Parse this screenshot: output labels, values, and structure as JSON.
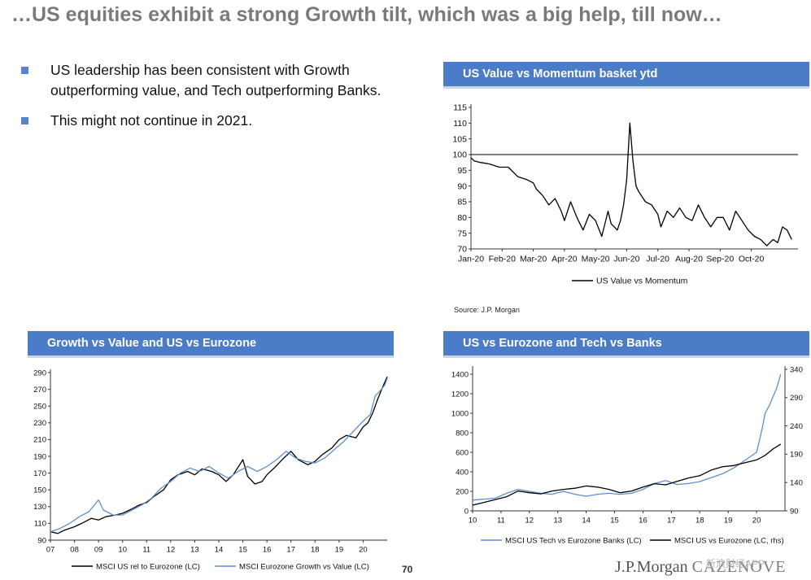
{
  "title": "…US equities exhibit a strong Growth tilt, which was a big help, till now…",
  "bullets": [
    "US leadership has been consistent with Growth outperforming value, and Tech outperforming Banks.",
    "This might not continue in 2021."
  ],
  "panel1": {
    "header": "US Value vs Momentum basket ytd",
    "source": "Source: J.P. Morgan"
  },
  "panel2": {
    "header": "Growth vs Value and US vs Eurozone"
  },
  "panel3": {
    "header": "US vs Eurozone and Tech vs Banks"
  },
  "footer": {
    "page": "70",
    "logo_a": "J.P.Morgan",
    "logo_b": "CAZENOVE",
    "watermark": "新浪财经APP"
  },
  "colors": {
    "header_bg": "#4a7cc7",
    "bullet": "#5b84c8",
    "series_black": "#000000",
    "series_blue": "#5b8fd0"
  },
  "chart_data": [
    {
      "type": "line",
      "title": "US Value vs Momentum basket ytd",
      "categories": [
        "Jan-20",
        "Feb-20",
        "Mar-20",
        "Apr-20",
        "May-20",
        "Jun-20",
        "Jul-20",
        "Aug-20",
        "Sep-20",
        "Oct-20"
      ],
      "yticks": [
        70,
        75,
        80,
        85,
        90,
        95,
        100,
        105,
        110,
        115
      ],
      "ylim": [
        70,
        115
      ],
      "reference_line": 100,
      "legend": [
        "US Value vs Momentum"
      ],
      "series": [
        {
          "name": "US Value vs Momentum",
          "color": "#000000",
          "points": [
            [
              0,
              99
            ],
            [
              0.1,
              98
            ],
            [
              0.3,
              97.5
            ],
            [
              0.6,
              97
            ],
            [
              0.9,
              96
            ],
            [
              1.2,
              96
            ],
            [
              1.5,
              93
            ],
            [
              1.8,
              92
            ],
            [
              2.0,
              91
            ],
            [
              2.1,
              89
            ],
            [
              2.3,
              87
            ],
            [
              2.5,
              84
            ],
            [
              2.7,
              86
            ],
            [
              2.9,
              82
            ],
            [
              3.0,
              79
            ],
            [
              3.2,
              85
            ],
            [
              3.4,
              80
            ],
            [
              3.6,
              76
            ],
            [
              3.8,
              81
            ],
            [
              4.0,
              79
            ],
            [
              4.2,
              74
            ],
            [
              4.4,
              82
            ],
            [
              4.5,
              78
            ],
            [
              4.7,
              76
            ],
            [
              4.8,
              79
            ],
            [
              4.9,
              84
            ],
            [
              5.0,
              92
            ],
            [
              5.1,
              110
            ],
            [
              5.2,
              98
            ],
            [
              5.3,
              90
            ],
            [
              5.4,
              88
            ],
            [
              5.6,
              85
            ],
            [
              5.8,
              84
            ],
            [
              6.0,
              81
            ],
            [
              6.1,
              77
            ],
            [
              6.3,
              82
            ],
            [
              6.5,
              80
            ],
            [
              6.7,
              83
            ],
            [
              6.9,
              80
            ],
            [
              7.1,
              79
            ],
            [
              7.3,
              84
            ],
            [
              7.5,
              80
            ],
            [
              7.7,
              77
            ],
            [
              7.9,
              80
            ],
            [
              8.1,
              80
            ],
            [
              8.3,
              76
            ],
            [
              8.5,
              82
            ],
            [
              8.7,
              79
            ],
            [
              8.9,
              76
            ],
            [
              9.1,
              74
            ],
            [
              9.3,
              73
            ],
            [
              9.5,
              71
            ],
            [
              9.7,
              73
            ],
            [
              9.85,
              72
            ],
            [
              10.0,
              77
            ],
            [
              10.15,
              76
            ],
            [
              10.3,
              73
            ]
          ]
        }
      ]
    },
    {
      "type": "line",
      "title": "Growth vs Value and US vs Eurozone",
      "categories": [
        "07",
        "08",
        "09",
        "10",
        "11",
        "12",
        "13",
        "14",
        "15",
        "16",
        "17",
        "18",
        "19",
        "20"
      ],
      "yticks": [
        90,
        110,
        130,
        150,
        170,
        190,
        210,
        230,
        250,
        270,
        290
      ],
      "ylim": [
        90,
        290
      ],
      "legend": [
        "MSCI US rel to Eurozone (LC)",
        "MSCI Eurozone Growth vs Value (LC)"
      ],
      "series": [
        {
          "name": "MSCI US rel to Eurozone (LC)",
          "color": "#000000",
          "points": [
            [
              0,
              100
            ],
            [
              0.3,
              98
            ],
            [
              0.6,
              102
            ],
            [
              1.0,
              106
            ],
            [
              1.3,
              110
            ],
            [
              1.7,
              116
            ],
            [
              2.0,
              114
            ],
            [
              2.3,
              118
            ],
            [
              2.7,
              120
            ],
            [
              3.0,
              122
            ],
            [
              3.3,
              126
            ],
            [
              3.7,
              132
            ],
            [
              4.0,
              135
            ],
            [
              4.3,
              142
            ],
            [
              4.7,
              150
            ],
            [
              5.0,
              162
            ],
            [
              5.3,
              168
            ],
            [
              5.7,
              172
            ],
            [
              6.0,
              168
            ],
            [
              6.3,
              175
            ],
            [
              6.7,
              172
            ],
            [
              7.0,
              168
            ],
            [
              7.3,
              160
            ],
            [
              7.6,
              168
            ],
            [
              8.0,
              186
            ],
            [
              8.2,
              166
            ],
            [
              8.5,
              157
            ],
            [
              8.8,
              160
            ],
            [
              9.0,
              168
            ],
            [
              9.3,
              176
            ],
            [
              9.7,
              188
            ],
            [
              10.0,
              196
            ],
            [
              10.3,
              186
            ],
            [
              10.7,
              180
            ],
            [
              11.0,
              184
            ],
            [
              11.3,
              192
            ],
            [
              11.7,
              200
            ],
            [
              12.0,
              210
            ],
            [
              12.3,
              215
            ],
            [
              12.7,
              212
            ],
            [
              13.0,
              225
            ],
            [
              13.2,
              230
            ],
            [
              13.4,
              242
            ],
            [
              13.6,
              258
            ],
            [
              13.8,
              272
            ],
            [
              14.0,
              285
            ]
          ]
        },
        {
          "name": "MSCI Eurozone Growth vs Value (LC)",
          "color": "#5b8fd0",
          "points": [
            [
              0,
              100
            ],
            [
              0.4,
              104
            ],
            [
              0.8,
              110
            ],
            [
              1.2,
              118
            ],
            [
              1.6,
              124
            ],
            [
              2.0,
              138
            ],
            [
              2.2,
              126
            ],
            [
              2.6,
              120
            ],
            [
              3.0,
              120
            ],
            [
              3.4,
              126
            ],
            [
              3.8,
              132
            ],
            [
              4.2,
              140
            ],
            [
              4.6,
              152
            ],
            [
              5.0,
              160
            ],
            [
              5.4,
              170
            ],
            [
              5.8,
              176
            ],
            [
              6.2,
              172
            ],
            [
              6.6,
              178
            ],
            [
              7.0,
              170
            ],
            [
              7.4,
              164
            ],
            [
              7.8,
              172
            ],
            [
              8.2,
              178
            ],
            [
              8.6,
              172
            ],
            [
              9.0,
              178
            ],
            [
              9.4,
              186
            ],
            [
              9.8,
              196
            ],
            [
              10.2,
              188
            ],
            [
              10.6,
              184
            ],
            [
              11.0,
              182
            ],
            [
              11.4,
              188
            ],
            [
              11.8,
              198
            ],
            [
              12.2,
              208
            ],
            [
              12.6,
              220
            ],
            [
              13.0,
              232
            ],
            [
              13.3,
              240
            ],
            [
              13.5,
              262
            ],
            [
              13.7,
              268
            ],
            [
              13.9,
              275
            ],
            [
              14.0,
              283
            ]
          ]
        }
      ]
    },
    {
      "type": "line",
      "title": "US vs Eurozone and Tech vs Banks",
      "categories": [
        "10",
        "11",
        "12",
        "13",
        "14",
        "15",
        "16",
        "17",
        "18",
        "19",
        "20"
      ],
      "yticks": [
        0,
        200,
        400,
        600,
        800,
        1000,
        1200,
        1400
      ],
      "ylim": [
        0,
        1450
      ],
      "yticks_right": [
        90,
        140,
        190,
        240,
        290,
        340
      ],
      "ylim_right": [
        90,
        340
      ],
      "legend": [
        "MSCI US Tech vs Eurozone Banks (LC)",
        "MSCI US vs Eurozone (LC, rhs)"
      ],
      "series": [
        {
          "name": "MSCI US Tech vs Eurozone Banks (LC)",
          "axis": "left",
          "color": "#5b8fd0",
          "points": [
            [
              0,
              110
            ],
            [
              0.4,
              120
            ],
            [
              0.8,
              130
            ],
            [
              1.2,
              180
            ],
            [
              1.6,
              220
            ],
            [
              2.0,
              200
            ],
            [
              2.4,
              180
            ],
            [
              2.8,
              170
            ],
            [
              3.2,
              200
            ],
            [
              3.6,
              170
            ],
            [
              4.0,
              150
            ],
            [
              4.4,
              170
            ],
            [
              4.8,
              180
            ],
            [
              5.2,
              170
            ],
            [
              5.6,
              180
            ],
            [
              6.0,
              220
            ],
            [
              6.4,
              280
            ],
            [
              6.8,
              310
            ],
            [
              7.2,
              270
            ],
            [
              7.6,
              280
            ],
            [
              8.0,
              300
            ],
            [
              8.4,
              340
            ],
            [
              8.8,
              380
            ],
            [
              9.2,
              440
            ],
            [
              9.6,
              520
            ],
            [
              10.0,
              600
            ],
            [
              10.1,
              720
            ],
            [
              10.2,
              850
            ],
            [
              10.3,
              1000
            ],
            [
              10.45,
              1080
            ],
            [
              10.55,
              1150
            ],
            [
              10.7,
              1250
            ],
            [
              10.85,
              1400
            ]
          ]
        },
        {
          "name": "MSCI US vs Eurozone (LC, rhs)",
          "axis": "right",
          "color": "#000000",
          "points": [
            [
              0,
              100
            ],
            [
              0.4,
              105
            ],
            [
              0.8,
              110
            ],
            [
              1.2,
              115
            ],
            [
              1.6,
              125
            ],
            [
              2.0,
              122
            ],
            [
              2.4,
              120
            ],
            [
              2.8,
              125
            ],
            [
              3.2,
              128
            ],
            [
              3.6,
              130
            ],
            [
              4.0,
              134
            ],
            [
              4.4,
              132
            ],
            [
              4.8,
              128
            ],
            [
              5.2,
              122
            ],
            [
              5.6,
              125
            ],
            [
              6.0,
              132
            ],
            [
              6.4,
              138
            ],
            [
              6.8,
              136
            ],
            [
              7.2,
              142
            ],
            [
              7.6,
              148
            ],
            [
              8.0,
              152
            ],
            [
              8.4,
              162
            ],
            [
              8.8,
              168
            ],
            [
              9.2,
              170
            ],
            [
              9.6,
              175
            ],
            [
              10.0,
              180
            ],
            [
              10.3,
              188
            ],
            [
              10.6,
              200
            ],
            [
              10.85,
              208
            ]
          ]
        }
      ]
    }
  ]
}
